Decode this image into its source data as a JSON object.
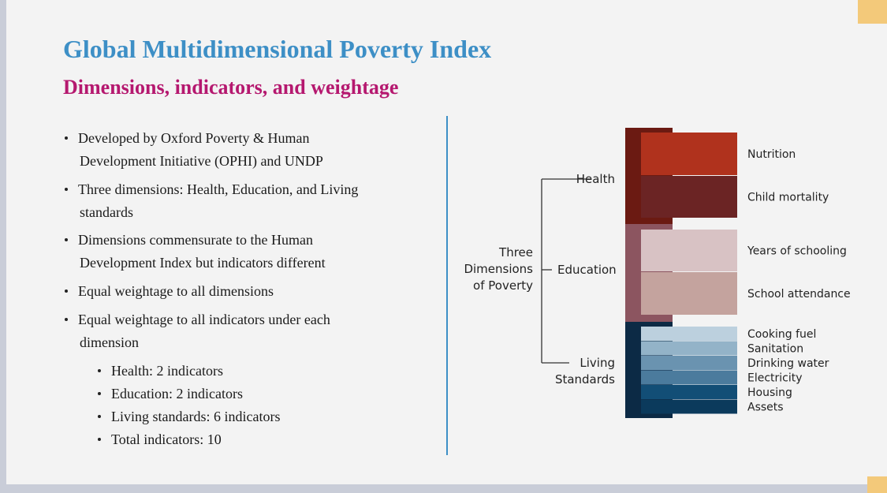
{
  "header": {
    "title": "Global Multidimensional Poverty Index",
    "subtitle": "Dimensions, indicators, and weightage"
  },
  "bullets": [
    {
      "lines": [
        "Developed by Oxford Poverty & Human",
        "Development Initiative (OPHI) and UNDP"
      ]
    },
    {
      "lines": [
        "Three dimensions: Health, Education, and Living",
        "standards"
      ]
    },
    {
      "lines": [
        "Dimensions commensurate to the Human",
        "Development Index but indicators different"
      ]
    },
    {
      "lines": [
        "Equal weightage to all dimensions"
      ]
    },
    {
      "lines": [
        "Equal weightage to all indicators under each",
        "dimension"
      ]
    }
  ],
  "sub_bullets": [
    "Health: 2 indicators",
    "Education: 2 indicators",
    "Living standards: 6 indicators",
    "Total indicators: 10"
  ],
  "diagram": {
    "root": [
      "Three",
      "Dimensions",
      "of Poverty"
    ],
    "dimensions": [
      {
        "label": [
          "Health"
        ],
        "color": "#6b1a12",
        "indicators": [
          {
            "label": "Nutrition",
            "color": "#b0321d"
          },
          {
            "label": "Child mortality",
            "color": "#6b2424"
          }
        ]
      },
      {
        "label": [
          "Education"
        ],
        "color": "#8c5560",
        "indicators": [
          {
            "label": "Years of schooling",
            "color": "#d8c2c4"
          },
          {
            "label": "School attendance",
            "color": "#c4a39e"
          }
        ]
      },
      {
        "label": [
          "Living",
          "Standards"
        ],
        "color": "#0c2a45",
        "indicators": [
          {
            "label": "Cooking fuel",
            "color": "#bcd0de"
          },
          {
            "label": "Sanitation",
            "color": "#93b3c8"
          },
          {
            "label": "Drinking water",
            "color": "#6a93b0"
          },
          {
            "label": "Electricity",
            "color": "#4b7b9d"
          },
          {
            "label": "Housing",
            "color": "#124e76"
          },
          {
            "label": "Assets",
            "color": "#0b3a5c"
          }
        ]
      }
    ]
  }
}
